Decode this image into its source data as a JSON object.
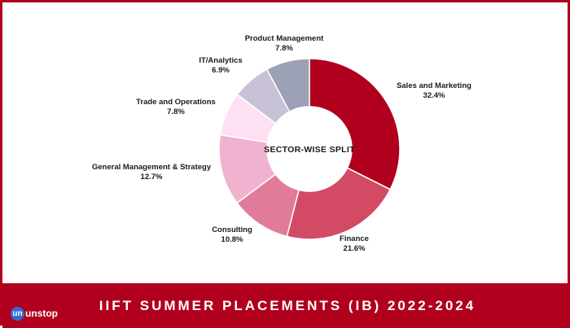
{
  "chart_data": {
    "type": "pie",
    "variant": "donut",
    "center_label": "SECTOR-WISE SPLIT",
    "slices": [
      {
        "name": "Sales and Marketing",
        "value": 32.4,
        "label": "32.4%",
        "color": "#b0001e"
      },
      {
        "name": "Finance",
        "value": 21.6,
        "label": "21.6%",
        "color": "#d24a64"
      },
      {
        "name": "Consulting",
        "value": 10.8,
        "label": "10.8%",
        "color": "#e07c99"
      },
      {
        "name": "General Management & Strategy",
        "value": 12.7,
        "label": "12.7%",
        "color": "#efb3cf"
      },
      {
        "name": "Trade and Operations",
        "value": 7.8,
        "label": "7.8%",
        "color": "#fde1f3"
      },
      {
        "name": "IT/Analytics",
        "value": 6.9,
        "label": "6.9%",
        "color": "#c9c2d7"
      },
      {
        "name": "Product Management",
        "value": 7.8,
        "label": "7.8%",
        "color": "#9da1b6"
      }
    ]
  },
  "footer": {
    "title": "IIFT SUMMER PLACEMENTS (IB) 2022-2024",
    "brand": "unstop",
    "brand_mark": "un"
  },
  "colors": {
    "brand_red": "#b0001e",
    "brand_blue": "#2f6dd0"
  }
}
